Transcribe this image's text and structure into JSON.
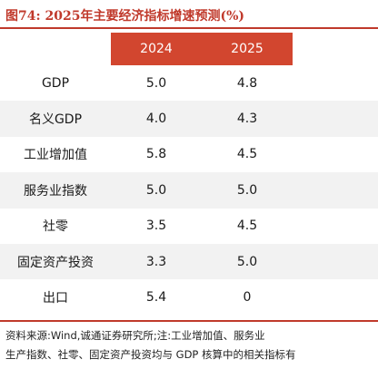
{
  "title": "图74:  2025年主要经济指标增速预测(%)",
  "columns": [
    "",
    "2024",
    "2025"
  ],
  "rows": [
    {
      "label": "GDP",
      "v2024": "5.0",
      "v2025": "4.8"
    },
    {
      "label": "名义GDP",
      "v2024": "4.0",
      "v2025": "4.3"
    },
    {
      "label": "工业增加值",
      "v2024": "5.8",
      "v2025": "4.5"
    },
    {
      "label": "服务业指数",
      "v2024": "5.0",
      "v2025": "5.0"
    },
    {
      "label": "社零",
      "v2024": "3.5",
      "v2025": "4.5"
    },
    {
      "label": "固定资产投资",
      "v2024": "3.3",
      "v2025": "5.0"
    },
    {
      "label": "出口",
      "v2024": "5.4",
      "v2025": "0"
    }
  ],
  "note_lines": [
    "资料来源:Wind,诚通证券研究所;注:工业增加值、服务业",
    "生产指数、社零、固定资产投资均与 GDP 核算中的相关指标有"
  ],
  "colors": {
    "accent": "#d2462f",
    "title": "#c0392b",
    "stripe": "#f2f2f2"
  }
}
